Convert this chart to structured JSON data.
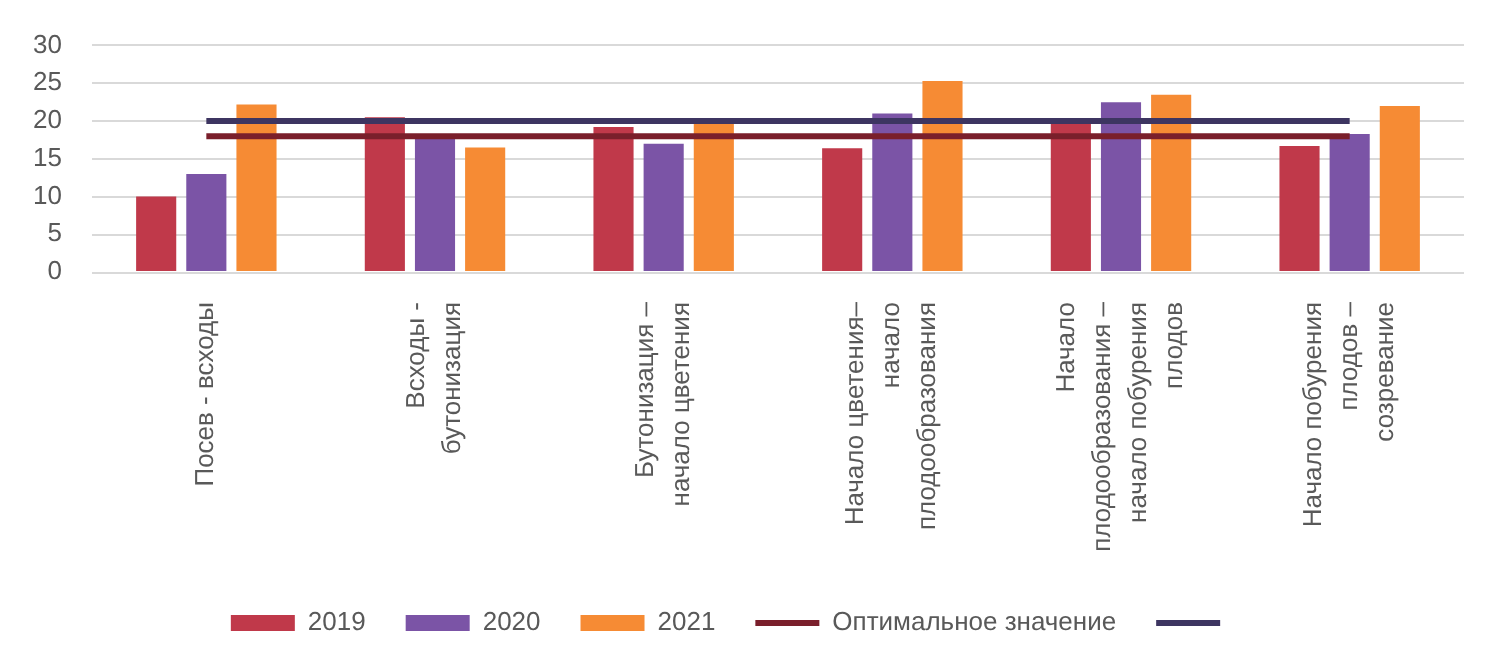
{
  "chart_data": {
    "type": "bar",
    "categories": [
      "Посев - всходы",
      "Всходы - бутонизация",
      "Бутонизация – начало цветения",
      "Начало цветения– начало плодообразования",
      "Начало плодообразования – начало побурения плодов",
      "Начало побурения плодов – созревание"
    ],
    "series": [
      {
        "name": "2019",
        "color": "#c0394a",
        "values": [
          10,
          20.5,
          19.2,
          16.4,
          19.7,
          16.7
        ]
      },
      {
        "name": "2020",
        "color": "#7b54a6",
        "values": [
          13,
          18,
          17,
          21,
          22.5,
          18.3
        ]
      },
      {
        "name": "2021",
        "color": "#f68b34",
        "values": [
          22.2,
          16.5,
          19.8,
          25.3,
          23.5,
          22
        ]
      },
      {
        "type": "line",
        "name": "Оптимальное значение",
        "color": "#7a1f2b",
        "values": [
          18,
          18,
          18,
          18,
          18,
          18
        ]
      },
      {
        "type": "line",
        "color": "#3d3561",
        "values": [
          20,
          20,
          20,
          20,
          20,
          20
        ]
      }
    ],
    "ylim": [
      0,
      30
    ],
    "yticks": [
      0,
      5,
      10,
      15,
      20,
      25,
      30
    ],
    "grid": "y",
    "legend": "bottom",
    "marker": "none"
  }
}
